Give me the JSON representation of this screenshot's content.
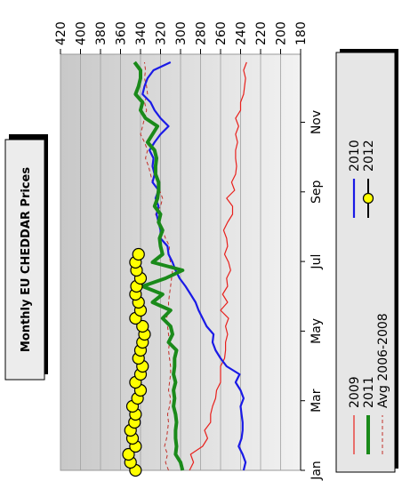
{
  "chart_data": {
    "type": "line",
    "title": "Monthly EU CHEDDAR Prices",
    "xlabel": "",
    "ylabel": "",
    "ylim": [
      180,
      420
    ],
    "yticks": [
      180,
      200,
      220,
      240,
      260,
      280,
      300,
      320,
      340,
      360,
      380,
      400,
      420
    ],
    "x_tick_labels": [
      "Jan",
      "Mar",
      "May",
      "Jul",
      "Sep",
      "Nov"
    ],
    "x_tick_positions": [
      1,
      9.7,
      18.4,
      27.1,
      35.8,
      44.5
    ],
    "xlim": [
      1,
      53
    ],
    "grid": true,
    "legend_position": "bottom",
    "colors": {
      "2009": "#e8201c",
      "2010": "#1a1ae6",
      "2011": "#1a8a1a",
      "2012_line": "#000000",
      "2012_marker": "#ffff00",
      "avg": "#c2302a",
      "plot_band_light": "#f2f2f2",
      "plot_band_dark": "#c8c8c8"
    },
    "series": [
      {
        "name": "2009",
        "x": [
          1,
          2,
          3,
          4,
          5,
          6,
          7,
          8,
          9,
          10,
          11,
          12,
          13,
          14,
          15,
          16,
          17,
          18,
          19,
          20,
          21,
          22,
          23,
          24,
          25,
          26,
          27,
          28,
          29,
          30,
          31,
          32,
          33,
          34,
          35,
          36,
          37,
          38,
          39,
          40,
          41,
          42,
          43,
          44,
          45,
          46,
          47,
          48,
          49,
          50,
          51,
          52
        ],
        "values": [
          291,
          287,
          290,
          278,
          273,
          276,
          270,
          270,
          268,
          265,
          264,
          260,
          260,
          260,
          256,
          255,
          255,
          253,
          255,
          252,
          260,
          253,
          258,
          253,
          254,
          250,
          252,
          256,
          253,
          254,
          257,
          253,
          248,
          248,
          254,
          246,
          249,
          245,
          244,
          245,
          245,
          243,
          245,
          242,
          245,
          240,
          240,
          237,
          236,
          235,
          237,
          234
        ]
      },
      {
        "name": "2010",
        "x": [
          1,
          2,
          3,
          4,
          5,
          6,
          7,
          8,
          9,
          10,
          11,
          12,
          13,
          14,
          15,
          16,
          17,
          18,
          19,
          20,
          21,
          22,
          23,
          24,
          25,
          26,
          27,
          28,
          29,
          30,
          31,
          32,
          33,
          34,
          35,
          36,
          37,
          38,
          39,
          40,
          41,
          42,
          43,
          44,
          45,
          46,
          47,
          48,
          49,
          50,
          51,
          52
        ],
        "values": [
          237,
          235,
          238,
          242,
          239,
          238,
          238,
          239,
          240,
          237,
          240,
          245,
          241,
          254,
          260,
          265,
          268,
          267,
          274,
          278,
          282,
          285,
          290,
          295,
          301,
          305,
          308,
          312,
          313,
          320,
          320,
          322,
          324,
          322,
          325,
          322,
          328,
          326,
          328,
          327,
          331,
          326,
          320,
          312,
          320,
          326,
          330,
          338,
          336,
          333,
          327,
          310
        ]
      },
      {
        "name": "2011",
        "x": [
          1,
          2,
          3,
          4,
          5,
          6,
          7,
          8,
          9,
          10,
          11,
          12,
          13,
          14,
          15,
          16,
          17,
          18,
          19,
          20,
          21,
          22,
          23,
          24,
          25,
          26,
          27,
          28,
          29,
          30,
          31,
          32,
          33,
          34,
          35,
          36,
          37,
          38,
          39,
          40,
          41,
          42,
          43,
          44,
          45,
          46,
          47,
          48,
          49,
          50,
          51,
          52
        ],
        "values": [
          298,
          300,
          305,
          304,
          305,
          305,
          304,
          305,
          307,
          306,
          307,
          305,
          307,
          306,
          306,
          304,
          312,
          308,
          310,
          318,
          310,
          328,
          318,
          338,
          315,
          298,
          328,
          318,
          320,
          321,
          318,
          322,
          320,
          326,
          323,
          322,
          322,
          325,
          325,
          324,
          326,
          333,
          328,
          323,
          335,
          340,
          338,
          345,
          342,
          340,
          340,
          346
        ]
      },
      {
        "name": "2012",
        "x": [
          1,
          2,
          3,
          4,
          5,
          6,
          7,
          8,
          9,
          10,
          11,
          12,
          13,
          14,
          15,
          16,
          17,
          18,
          19,
          20,
          21,
          22,
          23,
          24,
          25,
          26,
          27,
          28
        ],
        "values": [
          345,
          350,
          352,
          345,
          348,
          350,
          346,
          345,
          348,
          343,
          340,
          345,
          340,
          338,
          342,
          340,
          338,
          336,
          338,
          345,
          340,
          342,
          345,
          344,
          340,
          344,
          345,
          342
        ]
      },
      {
        "name": "Avg 2006-2008",
        "x": [
          1,
          2,
          3,
          4,
          5,
          6,
          7,
          8,
          9,
          10,
          11,
          12,
          13,
          14,
          15,
          16,
          17,
          18,
          19,
          20,
          21,
          22,
          23,
          24,
          25,
          26,
          27,
          28,
          29,
          30,
          31,
          32,
          33,
          34,
          35,
          36,
          37,
          38,
          39,
          40,
          41,
          42,
          43,
          44,
          45,
          46,
          47,
          48,
          49,
          50,
          51,
          52
        ],
        "values": [
          312,
          315,
          313,
          316,
          314,
          313,
          312,
          313,
          311,
          310,
          312,
          311,
          310,
          310,
          311,
          312,
          311,
          312,
          313,
          314,
          312,
          312,
          311,
          310,
          309,
          308,
          310,
          312,
          311,
          315,
          318,
          322,
          325,
          320,
          318,
          321,
          328,
          330,
          332,
          335,
          333,
          336,
          340,
          338,
          336,
          334,
          336,
          333,
          334,
          336,
          335,
          336
        ]
      }
    ],
    "legend": [
      {
        "label": "2009",
        "key": "2009"
      },
      {
        "label": "2011",
        "key": "2011"
      },
      {
        "label": "Avg 2006-2008",
        "key": "avg"
      },
      {
        "label": "2010",
        "key": "2010"
      },
      {
        "label": "2012",
        "key": "2012"
      }
    ]
  }
}
